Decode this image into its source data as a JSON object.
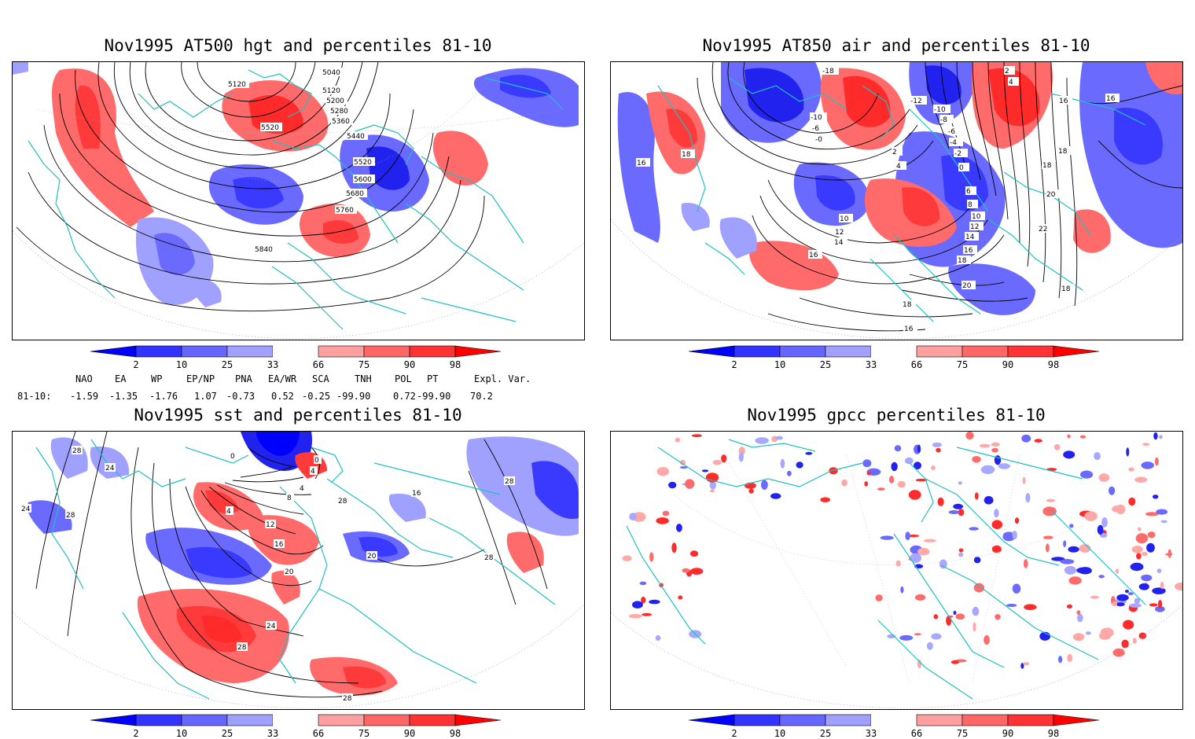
{
  "panels": [
    {
      "title": "Nov1995 AT500 hgt and percentiles 81-10",
      "contour_labels": [
        "5120",
        "5040",
        "5120",
        "5200",
        "5280",
        "5360",
        "5520",
        "5440",
        "5520",
        "5600",
        "5680",
        "5760",
        "5840"
      ]
    },
    {
      "title": "Nov1995 AT850 air and percentiles 81-10",
      "contour_labels": [
        "-18",
        "-10",
        "-6",
        "-0",
        "2",
        "4",
        "-12",
        "-10",
        "-8",
        "-6",
        "-4",
        "-2",
        "0",
        "2",
        "4",
        "16",
        "16",
        "18",
        "18",
        "16",
        "18",
        "20",
        "22",
        "10",
        "12",
        "14",
        "16",
        "6",
        "8",
        "10",
        "12",
        "14",
        "16",
        "18",
        "20",
        "18",
        "16",
        "18"
      ]
    },
    {
      "title": "Nov1995 sst and percentiles 81-10",
      "contour_labels": [
        "28",
        "24",
        "24",
        "28",
        "0",
        "0",
        "4",
        "4",
        "8",
        "4",
        "12",
        "16",
        "20",
        "20",
        "24",
        "28",
        "28",
        "28",
        "28",
        "16",
        "28"
      ]
    },
    {
      "title": "Nov1995 gpcc percentiles 81-10",
      "contour_labels": []
    }
  ],
  "colorbar": {
    "labels": [
      "2",
      "10",
      "25",
      "33",
      "66",
      "75",
      "90",
      "98"
    ],
    "colors": [
      "#0000ff",
      "#3333ff",
      "#6666ff",
      "#a0a0ff",
      "#ffffff",
      "#ffa0a0",
      "#ff6666",
      "#ff3333",
      "#ff0000"
    ]
  },
  "indices": {
    "headers": [
      "NAO",
      "EA",
      "WP",
      "EP/NP",
      "PNA",
      "EA/WR",
      "SCA",
      "TNH",
      "POL",
      "PT",
      "Expl. Var."
    ],
    "row_label": "81-10:",
    "values": [
      "-1.59",
      "-1.35",
      "-1.76",
      "1.07",
      "-0.73",
      "0.52",
      "-0.25",
      "-99.90",
      "0.72",
      "-99.90",
      "70.2"
    ]
  },
  "colors": {
    "coast": "#20c0c0",
    "blue_strong": "#2222ee",
    "blue_mid": "#6a6aff",
    "blue_light": "#a8a8ff",
    "red_strong": "#ff2a2a",
    "red_mid": "#ff6a6a",
    "red_light": "#ffa8a8"
  }
}
